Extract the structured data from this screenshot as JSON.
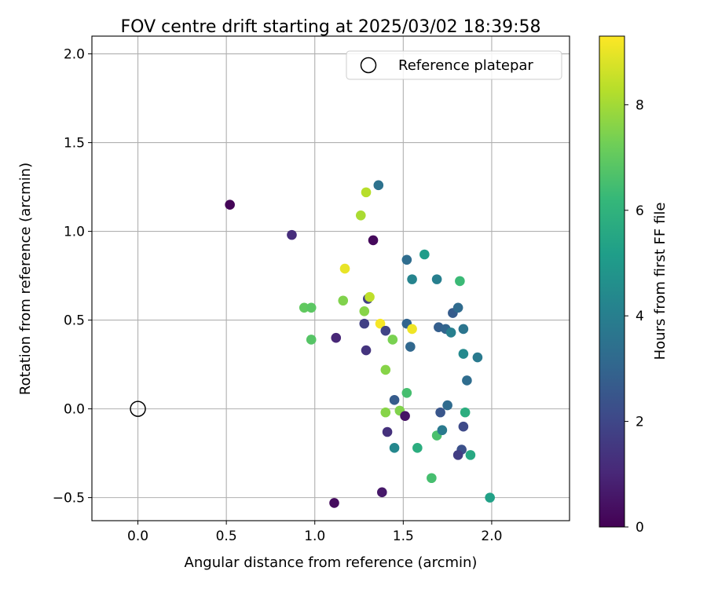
{
  "chart_data": {
    "type": "scatter",
    "title": "FOV centre drift starting at 2025/03/02 18:39:58",
    "xlabel": "Angular distance from reference (arcmin)",
    "ylabel": "Rotation from reference (arcmin)",
    "xlim": [
      -0.26,
      2.44
    ],
    "ylim": [
      -0.63,
      2.1
    ],
    "xticks": [
      0.0,
      0.5,
      1.0,
      1.5,
      2.0
    ],
    "xtick_labels": [
      "0.0",
      "0.5",
      "1.0",
      "1.5",
      "2.0"
    ],
    "yticks": [
      -0.5,
      0.0,
      0.5,
      1.0,
      1.5,
      2.0
    ],
    "ytick_labels": [
      "−0.5",
      "0.0",
      "0.5",
      "1.0",
      "1.5",
      "2.0"
    ],
    "grid": true,
    "legend": {
      "position": "top-right",
      "entries": [
        "Reference platepar"
      ]
    },
    "reference_point": {
      "x": 0.0,
      "y": 0.0,
      "marker": "open-circle",
      "color": "#000000"
    },
    "colorbar": {
      "label": "Hours from first FF file",
      "colormap": "viridis",
      "range": [
        0,
        9.3
      ],
      "ticks": [
        0,
        2,
        4,
        6,
        8
      ],
      "tick_labels": [
        "0",
        "2",
        "4",
        "6",
        "8"
      ]
    },
    "colormap_stops": [
      "#440154",
      "#482878",
      "#3e4989",
      "#31688e",
      "#26828e",
      "#1f9e89",
      "#35b779",
      "#6ece58",
      "#b5de2b",
      "#fde725"
    ],
    "points": [
      {
        "x": 0.52,
        "y": 1.15,
        "hours": 0.1
      },
      {
        "x": 0.87,
        "y": 0.98,
        "hours": 1.2
      },
      {
        "x": 1.11,
        "y": -0.53,
        "hours": 0.3
      },
      {
        "x": 1.12,
        "y": 0.4,
        "hours": 1.0
      },
      {
        "x": 1.33,
        "y": 0.95,
        "hours": 0.2
      },
      {
        "x": 1.36,
        "y": 1.26,
        "hours": 3.5
      },
      {
        "x": 1.29,
        "y": 1.22,
        "hours": 8.3
      },
      {
        "x": 1.26,
        "y": 1.09,
        "hours": 8.1
      },
      {
        "x": 1.17,
        "y": 0.79,
        "hours": 9.0
      },
      {
        "x": 1.16,
        "y": 0.61,
        "hours": 7.5
      },
      {
        "x": 1.3,
        "y": 0.62,
        "hours": 1.8
      },
      {
        "x": 1.31,
        "y": 0.63,
        "hours": 8.4
      },
      {
        "x": 1.28,
        "y": 0.55,
        "hours": 7.6
      },
      {
        "x": 0.94,
        "y": 0.57,
        "hours": 7.0
      },
      {
        "x": 0.98,
        "y": 0.57,
        "hours": 6.9
      },
      {
        "x": 0.98,
        "y": 0.39,
        "hours": 6.8
      },
      {
        "x": 1.28,
        "y": 0.48,
        "hours": 1.8
      },
      {
        "x": 1.37,
        "y": 0.48,
        "hours": 9.2
      },
      {
        "x": 1.4,
        "y": 0.44,
        "hours": 1.9
      },
      {
        "x": 1.29,
        "y": 0.33,
        "hours": 1.4
      },
      {
        "x": 1.44,
        "y": 0.39,
        "hours": 7.4
      },
      {
        "x": 1.4,
        "y": 0.22,
        "hours": 7.6
      },
      {
        "x": 1.52,
        "y": 0.84,
        "hours": 3.3
      },
      {
        "x": 1.62,
        "y": 0.87,
        "hours": 5.1
      },
      {
        "x": 1.55,
        "y": 0.73,
        "hours": 4.2
      },
      {
        "x": 1.69,
        "y": 0.73,
        "hours": 4.0
      },
      {
        "x": 1.82,
        "y": 0.72,
        "hours": 6.3
      },
      {
        "x": 1.52,
        "y": 0.48,
        "hours": 3.0
      },
      {
        "x": 1.55,
        "y": 0.45,
        "hours": 9.1
      },
      {
        "x": 1.54,
        "y": 0.35,
        "hours": 3.1
      },
      {
        "x": 1.7,
        "y": 0.46,
        "hours": 2.8
      },
      {
        "x": 1.74,
        "y": 0.45,
        "hours": 3.0
      },
      {
        "x": 1.77,
        "y": 0.43,
        "hours": 4.0
      },
      {
        "x": 1.78,
        "y": 0.54,
        "hours": 2.7
      },
      {
        "x": 1.81,
        "y": 0.57,
        "hours": 3.2
      },
      {
        "x": 1.84,
        "y": 0.45,
        "hours": 3.6
      },
      {
        "x": 1.84,
        "y": 0.31,
        "hours": 4.4
      },
      {
        "x": 1.92,
        "y": 0.29,
        "hours": 3.8
      },
      {
        "x": 1.86,
        "y": 0.16,
        "hours": 3.3
      },
      {
        "x": 1.52,
        "y": 0.09,
        "hours": 6.5
      },
      {
        "x": 1.45,
        "y": 0.05,
        "hours": 2.7
      },
      {
        "x": 1.4,
        "y": -0.02,
        "hours": 7.6
      },
      {
        "x": 1.48,
        "y": -0.01,
        "hours": 7.5
      },
      {
        "x": 1.51,
        "y": -0.04,
        "hours": 0.5
      },
      {
        "x": 1.41,
        "y": -0.13,
        "hours": 1.3
      },
      {
        "x": 1.45,
        "y": -0.22,
        "hours": 4.3
      },
      {
        "x": 1.58,
        "y": -0.22,
        "hours": 5.8
      },
      {
        "x": 1.38,
        "y": -0.47,
        "hours": 0.6
      },
      {
        "x": 1.66,
        "y": -0.39,
        "hours": 6.5
      },
      {
        "x": 1.69,
        "y": -0.15,
        "hours": 6.6
      },
      {
        "x": 1.72,
        "y": -0.12,
        "hours": 3.8
      },
      {
        "x": 1.75,
        "y": 0.02,
        "hours": 3.2
      },
      {
        "x": 1.71,
        "y": -0.02,
        "hours": 2.5
      },
      {
        "x": 1.85,
        "y": -0.02,
        "hours": 5.8
      },
      {
        "x": 1.84,
        "y": -0.1,
        "hours": 2.1
      },
      {
        "x": 1.83,
        "y": -0.23,
        "hours": 2.3
      },
      {
        "x": 1.81,
        "y": -0.26,
        "hours": 1.7
      },
      {
        "x": 1.88,
        "y": -0.26,
        "hours": 5.6
      },
      {
        "x": 1.99,
        "y": -0.5,
        "hours": 5.3
      }
    ]
  }
}
